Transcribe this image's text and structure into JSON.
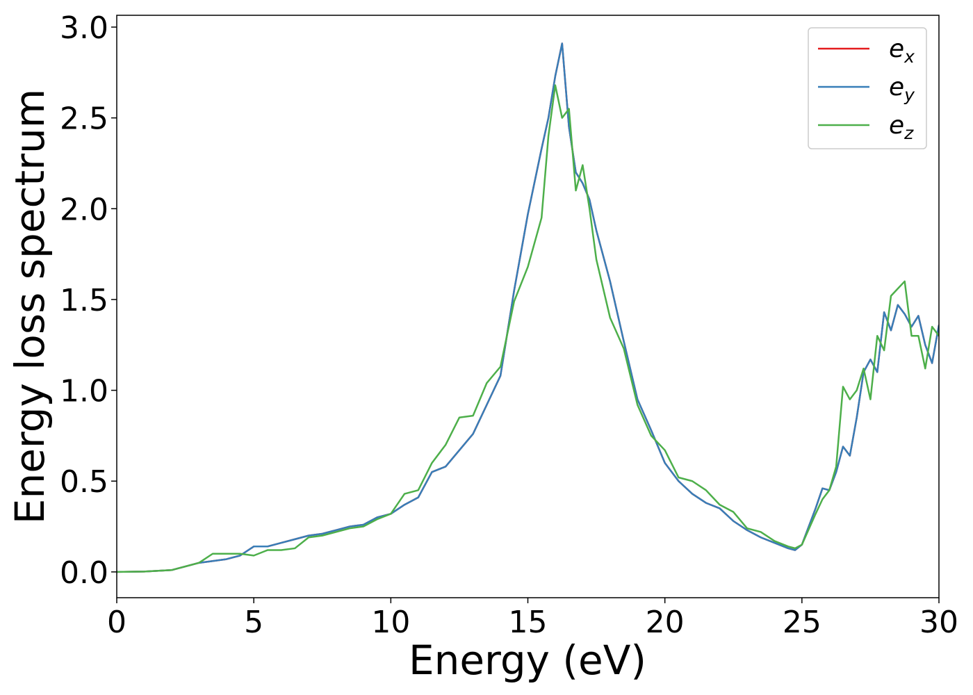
{
  "chart_data": {
    "type": "line",
    "xlabel": "Energy (eV)",
    "ylabel": "Energy loss spectrum",
    "x": [
      0,
      1,
      2,
      2.5,
      3,
      3.5,
      4,
      4.5,
      5,
      5.5,
      6,
      6.5,
      7,
      7.5,
      8,
      8.5,
      9,
      9.5,
      10,
      10.5,
      11,
      11.5,
      12,
      12.5,
      13,
      13.5,
      14,
      14.5,
      15,
      15.5,
      15.75,
      16,
      16.25,
      16.5,
      16.75,
      17,
      17.25,
      17.5,
      18,
      18.5,
      19,
      19.5,
      20,
      20.5,
      21,
      21.5,
      22,
      22.5,
      23,
      23.5,
      24,
      24.5,
      24.75,
      25,
      25.5,
      25.75,
      26,
      26.25,
      26.5,
      26.75,
      27,
      27.25,
      27.5,
      27.75,
      28,
      28.25,
      28.5,
      28.75,
      29,
      29.25,
      29.5,
      29.75,
      30
    ],
    "series": [
      {
        "name": "ex",
        "color": "#e41a1c",
        "values": [
          0,
          0.002,
          0.01,
          0.03,
          0.05,
          0.06,
          0.07,
          0.09,
          0.14,
          0.14,
          0.16,
          0.18,
          0.2,
          0.21,
          0.23,
          0.25,
          0.26,
          0.3,
          0.32,
          0.37,
          0.41,
          0.55,
          0.58,
          0.67,
          0.76,
          0.92,
          1.08,
          1.55,
          1.97,
          2.33,
          2.5,
          2.73,
          2.91,
          2.45,
          2.2,
          2.14,
          2.05,
          1.88,
          1.6,
          1.27,
          0.95,
          0.78,
          0.6,
          0.5,
          0.43,
          0.38,
          0.35,
          0.28,
          0.23,
          0.19,
          0.16,
          0.13,
          0.12,
          0.15,
          0.35,
          0.46,
          0.45,
          0.55,
          0.69,
          0.64,
          0.85,
          1.1,
          1.17,
          1.1,
          1.43,
          1.33,
          1.47,
          1.42,
          1.35,
          1.41,
          1.25,
          1.15,
          1.36
        ]
      },
      {
        "name": "ey",
        "color": "#377eb8",
        "values": [
          0,
          0.002,
          0.01,
          0.03,
          0.05,
          0.06,
          0.07,
          0.09,
          0.14,
          0.14,
          0.16,
          0.18,
          0.2,
          0.21,
          0.23,
          0.25,
          0.26,
          0.3,
          0.32,
          0.37,
          0.41,
          0.55,
          0.58,
          0.67,
          0.76,
          0.92,
          1.08,
          1.55,
          1.97,
          2.33,
          2.5,
          2.73,
          2.91,
          2.45,
          2.2,
          2.14,
          2.05,
          1.88,
          1.6,
          1.27,
          0.95,
          0.78,
          0.6,
          0.5,
          0.43,
          0.38,
          0.35,
          0.28,
          0.23,
          0.19,
          0.16,
          0.13,
          0.12,
          0.15,
          0.35,
          0.46,
          0.45,
          0.55,
          0.69,
          0.64,
          0.85,
          1.1,
          1.17,
          1.1,
          1.43,
          1.33,
          1.47,
          1.42,
          1.35,
          1.41,
          1.25,
          1.15,
          1.36
        ]
      },
      {
        "name": "ez",
        "color": "#4daf4a",
        "values": [
          0,
          0.002,
          0.01,
          0.03,
          0.05,
          0.1,
          0.1,
          0.1,
          0.09,
          0.12,
          0.12,
          0.13,
          0.19,
          0.2,
          0.22,
          0.24,
          0.25,
          0.29,
          0.32,
          0.43,
          0.45,
          0.6,
          0.7,
          0.85,
          0.86,
          1.04,
          1.13,
          1.49,
          1.68,
          1.95,
          2.4,
          2.68,
          2.5,
          2.55,
          2.1,
          2.24,
          2.0,
          1.72,
          1.4,
          1.23,
          0.92,
          0.75,
          0.67,
          0.52,
          0.5,
          0.45,
          0.37,
          0.33,
          0.24,
          0.22,
          0.17,
          0.14,
          0.13,
          0.15,
          0.32,
          0.4,
          0.45,
          0.58,
          1.02,
          0.95,
          1.0,
          1.12,
          0.95,
          1.3,
          1.22,
          1.52,
          1.56,
          1.6,
          1.3,
          1.3,
          1.12,
          1.35,
          1.3
        ]
      }
    ],
    "xlim": [
      0,
      30
    ],
    "xticks": [
      0,
      5,
      10,
      15,
      20,
      25,
      30
    ],
    "ylim": [
      -0.142,
      3.065
    ],
    "yticks": [
      {
        "value": 0,
        "label": "0.0"
      },
      {
        "value": 0.5,
        "label": "0.5"
      },
      {
        "value": 1,
        "label": "1.0"
      },
      {
        "value": 1.5,
        "label": "1.5"
      },
      {
        "value": 2,
        "label": "2.0"
      },
      {
        "value": 2.5,
        "label": "2.5"
      },
      {
        "value": 3,
        "label": "3.0"
      }
    ],
    "grid": false,
    "legend": "upper right"
  }
}
